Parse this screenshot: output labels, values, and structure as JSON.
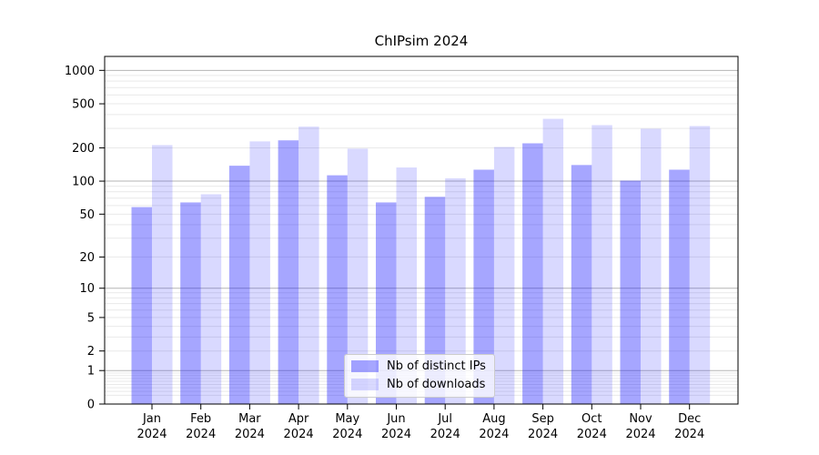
{
  "figure": {
    "title": "ChIPsim 2024"
  },
  "chart_data": {
    "type": "bar",
    "title": "ChIPsim 2024",
    "xlabel": "",
    "ylabel": "",
    "categories": [
      "Jan 2024",
      "Feb 2024",
      "Mar 2024",
      "Apr 2024",
      "May 2024",
      "Jun 2024",
      "Jul 2024",
      "Aug 2024",
      "Sep 2024",
      "Oct 2024",
      "Nov 2024",
      "Dec 2024"
    ],
    "series": [
      {
        "name": "Nb of distinct IPs",
        "color": "#0000ff",
        "opacity": 0.35,
        "values": [
          58,
          64,
          138,
          234,
          113,
          64,
          72,
          127,
          220,
          140,
          101,
          127
        ]
      },
      {
        "name": "Nb of downloads",
        "color": "#0000ff",
        "opacity": 0.15,
        "values": [
          212,
          76,
          229,
          311,
          197,
          133,
          106,
          204,
          366,
          321,
          298,
          315
        ]
      }
    ],
    "yscale": "log1p",
    "yticks": [
      0,
      1,
      2,
      5,
      10,
      20,
      50,
      100,
      200,
      500,
      1000
    ],
    "ylim": [
      0,
      1335
    ],
    "grid": true,
    "grid_major_color": "#b5b5b5",
    "grid_minor_color": "#e9e9e9",
    "legend_position": "lower center"
  }
}
